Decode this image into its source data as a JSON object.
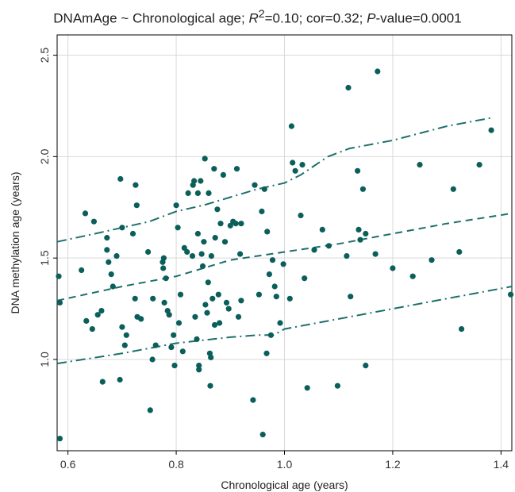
{
  "chart_data": {
    "type": "scatter",
    "title_parts": [
      "DNAmAge ~ Chronological age; ",
      "R",
      "2",
      "=0.10; cor=0.32; ",
      "P",
      "-value=0.0001"
    ],
    "xlabel": "Chronological age (years)",
    "ylabel": "DNA methylation age (years)",
    "xlim": [
      0.58,
      1.42
    ],
    "ylim": [
      0.55,
      2.6
    ],
    "x_ticks": [
      "0.6",
      "0.8",
      "1.0",
      "1.2",
      "1.4"
    ],
    "y_ticks": [
      "1.0",
      "1.5",
      "2.0",
      "2.5"
    ],
    "grid": true,
    "point_color": "#0b5f5a",
    "line_color": "#1c6f6b",
    "points": [
      [
        0.583,
        1.41
      ],
      [
        0.585,
        1.28
      ],
      [
        0.585,
        0.61
      ],
      [
        0.625,
        1.44
      ],
      [
        0.632,
        1.72
      ],
      [
        0.634,
        1.19
      ],
      [
        0.645,
        1.15
      ],
      [
        0.648,
        1.68
      ],
      [
        0.655,
        1.22
      ],
      [
        0.662,
        1.24
      ],
      [
        0.664,
        0.89
      ],
      [
        0.672,
        1.6
      ],
      [
        0.672,
        1.54
      ],
      [
        0.675,
        1.48
      ],
      [
        0.68,
        1.42
      ],
      [
        0.683,
        1.36
      ],
      [
        0.69,
        1.51
      ],
      [
        0.696,
        0.9
      ],
      [
        0.697,
        1.89
      ],
      [
        0.7,
        1.65
      ],
      [
        0.7,
        1.16
      ],
      [
        0.705,
        1.07
      ],
      [
        0.708,
        1.12
      ],
      [
        0.72,
        1.62
      ],
      [
        0.724,
        1.3
      ],
      [
        0.725,
        1.86
      ],
      [
        0.727,
        1.76
      ],
      [
        0.728,
        1.21
      ],
      [
        0.735,
        1.2
      ],
      [
        0.748,
        1.53
      ],
      [
        0.752,
        0.75
      ],
      [
        0.756,
        1.0
      ],
      [
        0.757,
        1.3
      ],
      [
        0.762,
        1.07
      ],
      [
        0.775,
        1.48
      ],
      [
        0.776,
        1.45
      ],
      [
        0.777,
        1.5
      ],
      [
        0.778,
        1.28
      ],
      [
        0.781,
        1.4
      ],
      [
        0.784,
        1.24
      ],
      [
        0.787,
        1.22
      ],
      [
        0.791,
        1.06
      ],
      [
        0.795,
        1.12
      ],
      [
        0.797,
        0.97
      ],
      [
        0.8,
        1.76
      ],
      [
        0.803,
        1.65
      ],
      [
        0.805,
        1.18
      ],
      [
        0.808,
        1.32
      ],
      [
        0.812,
        1.04
      ],
      [
        0.815,
        1.55
      ],
      [
        0.82,
        1.53
      ],
      [
        0.822,
        1.82
      ],
      [
        0.83,
        1.51
      ],
      [
        0.831,
        1.86
      ],
      [
        0.833,
        1.88
      ],
      [
        0.835,
        1.21
      ],
      [
        0.838,
        1.1
      ],
      [
        0.84,
        1.62
      ],
      [
        0.84,
        1.82
      ],
      [
        0.842,
        0.97
      ],
      [
        0.842,
        0.95
      ],
      [
        0.845,
        1.88
      ],
      [
        0.847,
        1.52
      ],
      [
        0.849,
        1.46
      ],
      [
        0.851,
        1.58
      ],
      [
        0.853,
        1.99
      ],
      [
        0.854,
        1.27
      ],
      [
        0.857,
        1.23
      ],
      [
        0.859,
        1.38
      ],
      [
        0.86,
        1.82
      ],
      [
        0.862,
        1.03
      ],
      [
        0.863,
        0.87
      ],
      [
        0.864,
        1.01
      ],
      [
        0.865,
        1.51
      ],
      [
        0.867,
        1.3
      ],
      [
        0.87,
        1.94
      ],
      [
        0.871,
        1.17
      ],
      [
        0.872,
        1.6
      ],
      [
        0.876,
        1.74
      ],
      [
        0.878,
        1.32
      ],
      [
        0.88,
        1.18
      ],
      [
        0.882,
        1.67
      ],
      [
        0.887,
        1.91
      ],
      [
        0.89,
        1.58
      ],
      [
        0.893,
        1.28
      ],
      [
        0.897,
        1.25
      ],
      [
        0.9,
        1.66
      ],
      [
        0.905,
        1.68
      ],
      [
        0.91,
        1.67
      ],
      [
        0.912,
        1.94
      ],
      [
        0.915,
        1.21
      ],
      [
        0.918,
        1.52
      ],
      [
        0.92,
        1.29
      ],
      [
        0.92,
        1.67
      ],
      [
        0.942,
        0.8
      ],
      [
        0.945,
        1.86
      ],
      [
        0.953,
        1.32
      ],
      [
        0.958,
        1.73
      ],
      [
        0.96,
        0.63
      ],
      [
        0.963,
        1.84
      ],
      [
        0.967,
        1.03
      ],
      [
        0.968,
        1.63
      ],
      [
        0.972,
        1.42
      ],
      [
        0.975,
        1.12
      ],
      [
        0.978,
        1.49
      ],
      [
        0.982,
        1.36
      ],
      [
        0.985,
        1.31
      ],
      [
        0.992,
        1.18
      ],
      [
        0.998,
        1.47
      ],
      [
        1.01,
        1.3
      ],
      [
        1.013,
        2.15
      ],
      [
        1.015,
        1.97
      ],
      [
        1.02,
        1.93
      ],
      [
        1.03,
        1.71
      ],
      [
        1.033,
        1.96
      ],
      [
        1.037,
        1.4
      ],
      [
        1.042,
        0.86
      ],
      [
        1.055,
        1.54
      ],
      [
        1.07,
        1.64
      ],
      [
        1.082,
        1.56
      ],
      [
        1.098,
        0.87
      ],
      [
        1.115,
        1.51
      ],
      [
        1.118,
        2.34
      ],
      [
        1.122,
        1.31
      ],
      [
        1.135,
        1.93
      ],
      [
        1.137,
        1.64
      ],
      [
        1.14,
        1.59
      ],
      [
        1.145,
        1.84
      ],
      [
        1.15,
        1.62
      ],
      [
        1.15,
        0.97
      ],
      [
        1.168,
        1.52
      ],
      [
        1.172,
        2.42
      ],
      [
        1.2,
        1.45
      ],
      [
        1.237,
        1.41
      ],
      [
        1.25,
        1.96
      ],
      [
        1.272,
        1.49
      ],
      [
        1.312,
        1.84
      ],
      [
        1.323,
        1.53
      ],
      [
        1.327,
        1.15
      ],
      [
        1.36,
        1.96
      ],
      [
        1.382,
        2.13
      ],
      [
        1.418,
        1.32
      ]
    ],
    "lines": [
      {
        "style": "dash-dot",
        "x": [
          0.58,
          0.65,
          0.75,
          0.8,
          0.85,
          0.9,
          0.95,
          1.0,
          1.03,
          1.08,
          1.12,
          1.2,
          1.3,
          1.38
        ],
        "y": [
          1.58,
          1.62,
          1.68,
          1.73,
          1.76,
          1.8,
          1.84,
          1.87,
          1.91,
          2.0,
          2.04,
          2.08,
          2.15,
          2.19
        ]
      },
      {
        "style": "dash",
        "x": [
          0.58,
          0.7,
          0.8,
          0.9,
          1.0,
          1.1,
          1.2,
          1.3,
          1.42
        ],
        "y": [
          1.29,
          1.36,
          1.41,
          1.49,
          1.53,
          1.57,
          1.62,
          1.67,
          1.72
        ]
      },
      {
        "style": "dash-dot",
        "x": [
          0.58,
          0.7,
          0.8,
          0.9,
          0.95,
          0.98,
          1.0,
          1.1,
          1.2,
          1.3,
          1.42
        ],
        "y": [
          0.98,
          1.03,
          1.08,
          1.11,
          1.12,
          1.12,
          1.15,
          1.2,
          1.25,
          1.3,
          1.36
        ]
      }
    ]
  }
}
